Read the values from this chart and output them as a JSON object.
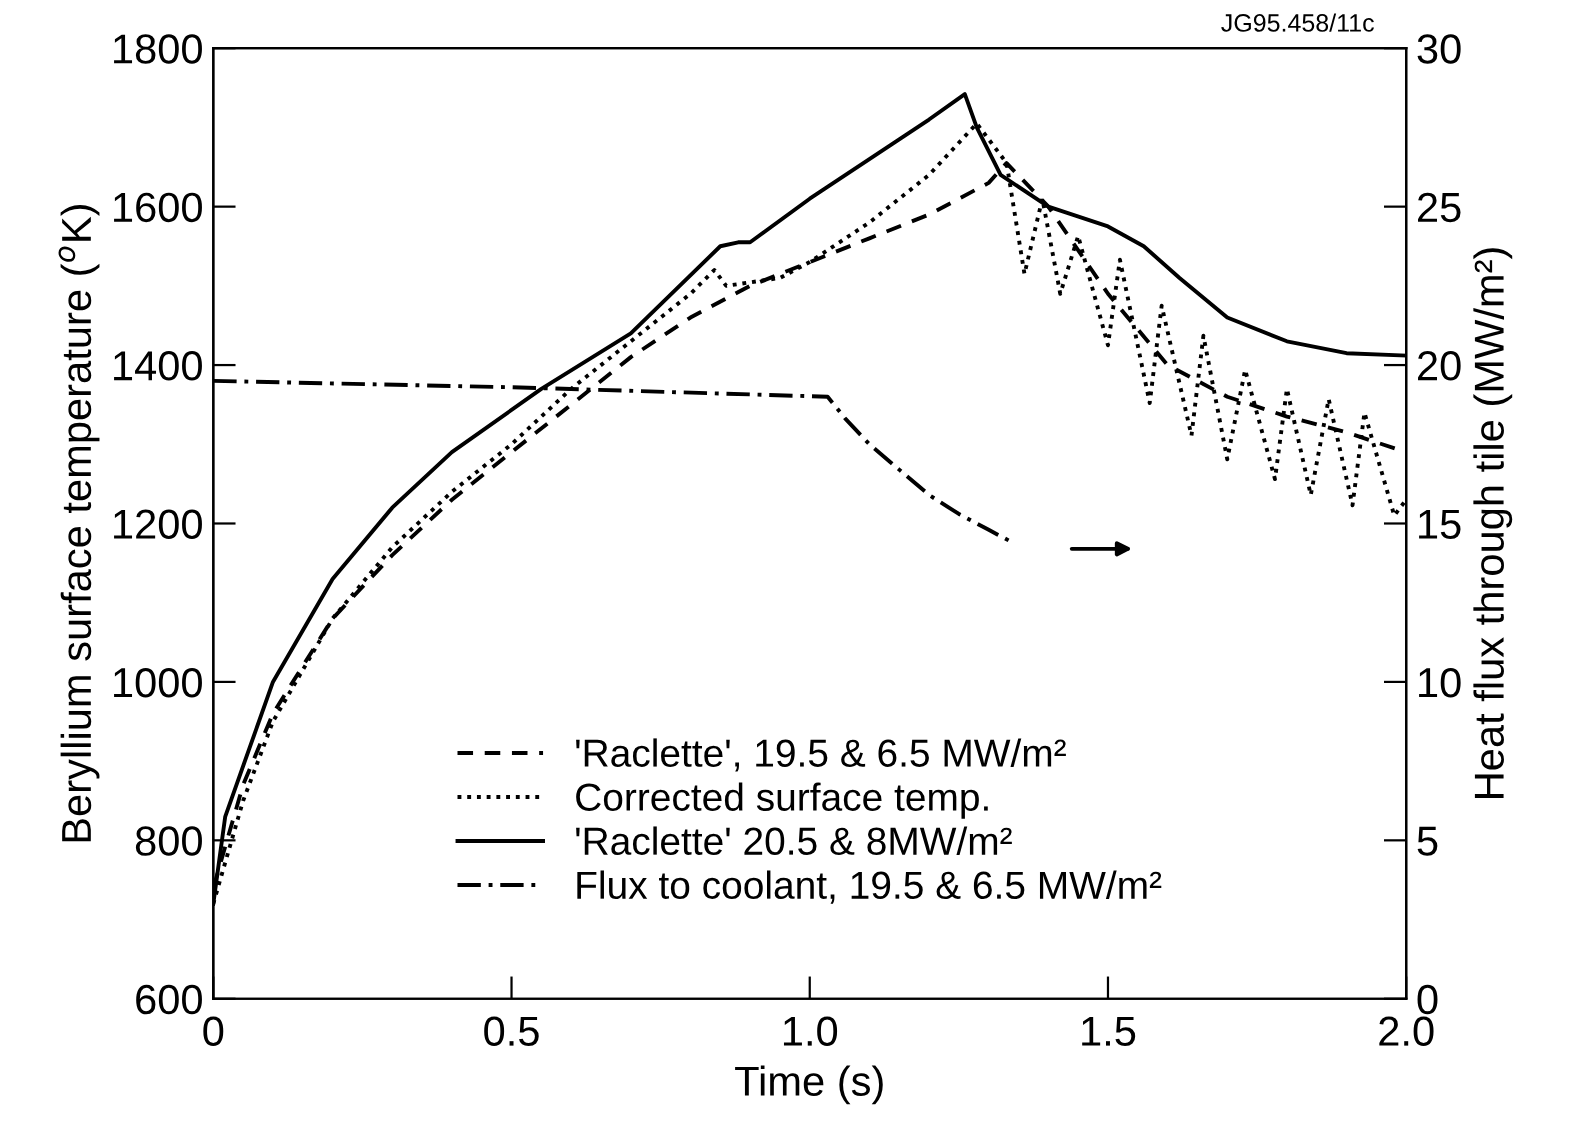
{
  "chart_data": {
    "type": "line",
    "xlabel": "Time (s)",
    "ylabel": "Beryllium surface temperature ($^{o}$K)",
    "y2label": "Heat flux through tile (MW/m²)",
    "annotations": [
      "JG95.458/11c"
    ],
    "xlim": [
      0,
      2.0
    ],
    "xticks": [
      0,
      0.5,
      {
        "value": 1.0,
        "label": "1.0"
      },
      1.5,
      {
        "value": 2.0,
        "label": "2.0"
      }
    ],
    "ylim": [
      600,
      1800
    ],
    "yticks": [
      600,
      800,
      1000,
      1200,
      1400,
      1600,
      1800
    ],
    "y2lim": [
      0,
      30
    ],
    "y2ticks": [
      0,
      5,
      10,
      15,
      20,
      25,
      30
    ],
    "legend": "bottom",
    "grid": false,
    "series": [
      {
        "name": "'Raclette', 19.5 & 6.5 MW/m²",
        "color": "#000000",
        "line_style": "dashed",
        "x": [
          0,
          0.05,
          0.1,
          0.2,
          0.3,
          0.4,
          0.5,
          0.6,
          0.7,
          0.8,
          0.9,
          1.0,
          1.1,
          1.2,
          1.3,
          1.33,
          1.4,
          1.5,
          1.6,
          1.7,
          1.8,
          1.9,
          2.0
        ],
        "values": [
          740,
          870,
          960,
          1080,
          1160,
          1230,
          1290,
          1350,
          1410,
          1460,
          1500,
          1530,
          1560,
          1590,
          1630,
          1655,
          1600,
          1490,
          1400,
          1360,
          1335,
          1315,
          1290
        ]
      },
      {
        "name": "Corrected surface temp.",
        "color": "#000000",
        "line_style": "dotted",
        "x": [
          0,
          0.05,
          0.1,
          0.2,
          0.3,
          0.4,
          0.5,
          0.6,
          0.7,
          0.8,
          0.84,
          0.86,
          0.95,
          1.0,
          1.1,
          1.2,
          1.28,
          1.33,
          1.36,
          1.39,
          1.42,
          1.45,
          1.5,
          1.52,
          1.57,
          1.59,
          1.64,
          1.66,
          1.7,
          1.73,
          1.78,
          1.8,
          1.84,
          1.87,
          1.91,
          1.93,
          1.98,
          2.0
        ],
        "values": [
          720,
          850,
          950,
          1080,
          1170,
          1240,
          1300,
          1370,
          1430,
          1490,
          1520,
          1500,
          1510,
          1530,
          1580,
          1640,
          1705,
          1655,
          1515,
          1610,
          1490,
          1563,
          1425,
          1533,
          1352,
          1475,
          1311,
          1437,
          1281,
          1394,
          1256,
          1370,
          1236,
          1357,
          1223,
          1340,
          1210,
          1230
        ]
      },
      {
        "name": "'Raclette' 20.5 & 8MW/m²",
        "color": "#000000",
        "line_style": "solid",
        "x": [
          0,
          0.02,
          0.1,
          0.2,
          0.3,
          0.4,
          0.55,
          0.7,
          0.85,
          0.88,
          0.9,
          1.0,
          1.1,
          1.2,
          1.26,
          1.28,
          1.32,
          1.4,
          1.5,
          1.56,
          1.62,
          1.7,
          1.8,
          1.9,
          2.0
        ],
        "values": [
          720,
          830,
          1000,
          1130,
          1220,
          1290,
          1370,
          1440,
          1550,
          1555,
          1555,
          1610,
          1660,
          1710,
          1742,
          1700,
          1640,
          1600,
          1575,
          1550,
          1510,
          1460,
          1430,
          1415,
          1412
        ]
      },
      {
        "name": "Flux to coolant, 19.5 & 6.5 MW/m²",
        "color": "#000000",
        "line_style": "dashdot",
        "axis": "y2",
        "x": [
          0,
          0.5,
          1.03,
          1.06,
          1.1,
          1.15,
          1.2,
          1.25,
          1.3,
          1.34
        ],
        "values": [
          19.5,
          19.3,
          19.0,
          18.3,
          17.5,
          16.7,
          15.9,
          15.3,
          14.8,
          14.4
        ]
      }
    ]
  }
}
